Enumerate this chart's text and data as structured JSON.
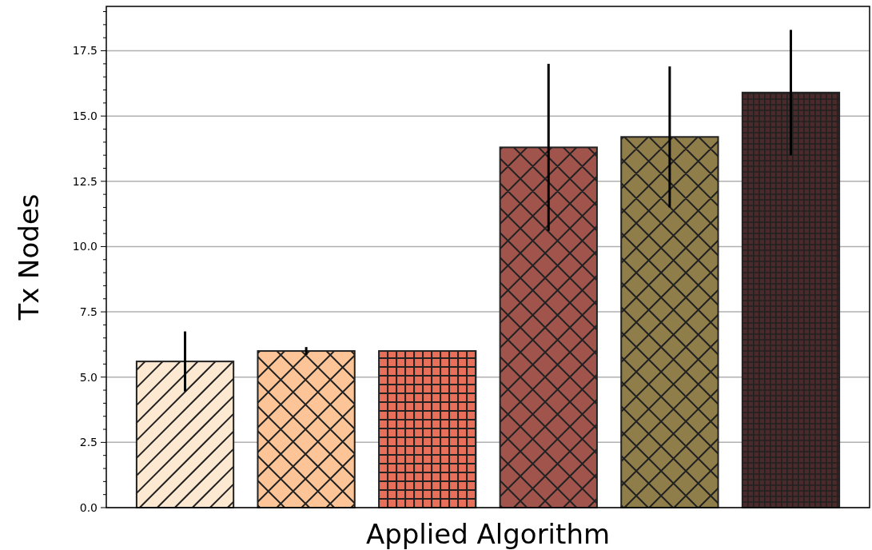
{
  "chart_data": {
    "type": "bar",
    "xlabel": "Applied Algorithm",
    "ylabel": "Tx Nodes",
    "categories": [
      null,
      null,
      null,
      null,
      null,
      null
    ],
    "values": [
      5.6,
      6.0,
      6.0,
      13.8,
      14.2,
      15.9
    ],
    "errors": [
      1.15,
      0.15,
      null,
      3.2,
      2.7,
      2.4
    ],
    "colors": [
      "#fde9d2",
      "#fdc597",
      "#e8705a",
      "#a0544c",
      "#8f7d4a",
      "#4a2a2a"
    ],
    "ylim": [
      0,
      19.2
    ],
    "yticks": [
      {
        "value": 0,
        "label": "0.0"
      },
      {
        "value": 0.5,
        "label": null
      },
      {
        "value": 1,
        "label": null
      },
      {
        "value": 1.5,
        "label": null
      },
      {
        "value": 2,
        "label": null
      },
      {
        "value": 2.5,
        "label": "2.5"
      },
      {
        "value": 3,
        "label": null
      },
      {
        "value": 3.5,
        "label": null
      },
      {
        "value": 4,
        "label": null
      },
      {
        "value": 4.5,
        "label": null
      },
      {
        "value": 5,
        "label": "5.0"
      },
      {
        "value": 5.5,
        "label": null
      },
      {
        "value": 6,
        "label": null
      },
      {
        "value": 6.5,
        "label": null
      },
      {
        "value": 7,
        "label": null
      },
      {
        "value": 7.5,
        "label": "7.5"
      },
      {
        "value": 8,
        "label": null
      },
      {
        "value": 8.5,
        "label": null
      },
      {
        "value": 9,
        "label": null
      },
      {
        "value": 9.5,
        "label": null
      },
      {
        "value": 10,
        "label": "10.0"
      },
      {
        "value": 10.5,
        "label": null
      },
      {
        "value": 11,
        "label": null
      },
      {
        "value": 11.5,
        "label": null
      },
      {
        "value": 12,
        "label": null
      },
      {
        "value": 12.5,
        "label": "12.5"
      },
      {
        "value": 13,
        "label": null
      },
      {
        "value": 13.5,
        "label": null
      },
      {
        "value": 14,
        "label": null
      },
      {
        "value": 14.5,
        "label": null
      },
      {
        "value": 15,
        "label": "15.0"
      },
      {
        "value": 15.5,
        "label": null
      },
      {
        "value": 16,
        "label": null
      },
      {
        "value": 16.5,
        "label": null
      },
      {
        "value": 17,
        "label": null
      },
      {
        "value": 17.5,
        "label": "17.5"
      },
      {
        "value": 18,
        "label": null
      },
      {
        "value": 18.5,
        "label": null
      },
      {
        "value": 19,
        "label": null
      }
    ],
    "grid": "y"
  }
}
